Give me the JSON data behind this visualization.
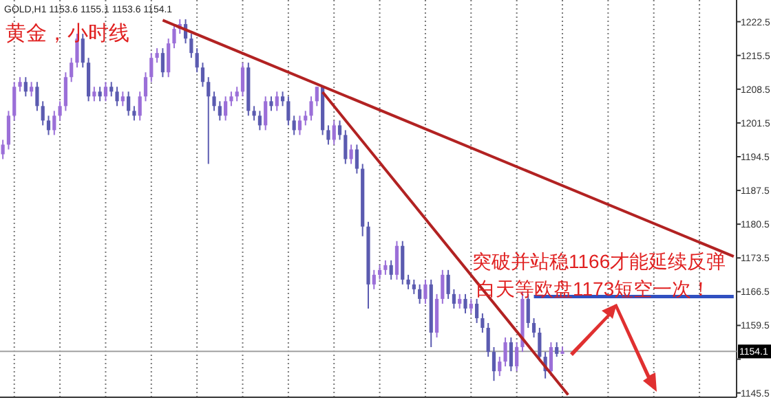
{
  "chart_data": {
    "type": "candlestick",
    "title": "黄金，小时线",
    "annotations": [
      "GOLD,H1  1153.6  1155.1  1153.6  1154.1",
      "突破并站稳1166才能延续反弹",
      "白天等欧盘1173短空一次！"
    ],
    "categories": [
      null,
      null,
      null,
      null,
      null,
      null,
      null,
      null,
      null,
      null,
      null,
      null,
      null,
      null,
      null,
      null,
      null,
      null,
      null,
      null,
      null,
      null,
      null,
      null,
      null,
      null,
      null,
      null,
      null,
      null,
      null,
      null,
      null,
      null,
      null,
      null,
      null,
      null,
      null,
      null,
      null,
      null,
      null,
      null,
      null,
      null,
      null,
      null,
      null,
      null,
      null,
      null,
      null,
      null,
      null,
      null,
      null,
      null,
      null,
      null,
      null,
      null,
      null,
      null,
      null,
      null,
      null,
      null,
      null,
      null,
      null,
      null,
      null,
      null,
      null,
      null,
      null,
      null,
      null,
      null,
      null,
      null,
      null,
      null,
      null,
      null,
      null,
      null,
      null,
      null,
      null,
      null,
      null,
      null,
      null,
      null,
      null,
      null,
      null,
      null,
      null,
      null,
      null,
      null,
      null,
      null,
      null,
      null,
      null,
      null,
      null,
      null,
      null,
      null,
      null,
      null,
      null,
      null,
      null,
      null,
      null,
      null,
      null,
      null,
      null,
      null,
      null,
      null,
      null
    ],
    "ylim": [
      1144.6,
      1227.0
    ],
    "yticks": [
      1145.5,
      {
        "value": 1152.5,
        "label": null
      },
      1159.5,
      1166.5,
      1173.5,
      1180.5,
      1187.5,
      1194.5,
      1201.5,
      1208.5,
      1215.5,
      1222.5
    ],
    "grid": "x",
    "tick_labels": "y",
    "ref_lines": [
      {
        "axis": "y",
        "value": 1154.1,
        "label": "1154.1",
        "color": "#a0a0a0"
      }
    ],
    "series": [
      {
        "colors": [
          "#9b6fd8",
          "#9b6fd8",
          "#9b6fd8",
          "#9b6fd8",
          "#5b5bb0",
          "#9b6fd8",
          "#5b5bb0",
          "#5b5bb0",
          "#5b5bb0",
          "#9b6fd8",
          "#9b6fd8",
          "#9b6fd8",
          "#9b6fd8",
          "#9b6fd8",
          "#5b5bb0",
          "#5b5bb0",
          "#9b6fd8",
          "#5b5bb0",
          "#9b6fd8",
          "#5b5bb0",
          "#5b5bb0",
          "#9b6fd8",
          "#5b5bb0",
          "#5b5bb0",
          "#9b6fd8",
          "#9b6fd8",
          "#9b6fd8",
          "#9b6fd8",
          "#5b5bb0",
          "#9b6fd8",
          "#9b6fd8",
          "#9b6fd8",
          "#5b5bb0",
          "#5b5bb0",
          "#5b5bb0",
          "#5b5bb0",
          "#5b5bb0",
          "#5b5bb0",
          "#5b5bb0",
          "#9b6fd8",
          "#9b6fd8",
          "#9b6fd8",
          "#9b6fd8",
          "#5b5bb0",
          "#5b5bb0",
          "#5b5bb0",
          "#9b6fd8",
          "#5b5bb0",
          "#9b6fd8",
          "#5b5bb0",
          "#5b5bb0",
          "#5b5bb0",
          "#9b6fd8",
          "#9b6fd8",
          "#9b6fd8",
          "#9b6fd8",
          "#5b5bb0",
          "#5b5bb0",
          "#9b6fd8",
          "#5b5bb0",
          "#5b5bb0",
          "#9b6fd8",
          "#5b5bb0",
          "#5b5bb0",
          "#5b5bb0",
          "#9b6fd8",
          "#9b6fd8",
          "#9b6fd8",
          "#5b5bb0",
          "#9b6fd8",
          "#5b5bb0",
          "#5b5bb0",
          "#5b5bb0",
          "#5b5bb0",
          "#9b6fd8",
          "#5b5bb0",
          "#9b6fd8",
          "#9b6fd8",
          "#5b5bb0",
          "#5b5bb0",
          "#9b6fd8",
          "#5b5bb0",
          "#9b6fd8",
          "#5b5bb0",
          "#5b5bb0",
          "#5b5bb0",
          "#5b5bb0",
          "#9b6fd8",
          "#9b6fd8",
          "#5b5bb0",
          "#9b6fd8",
          "#9b6fd8",
          "#5b5bb0",
          "#5b5bb0",
          "#5b5bb0",
          "#5b5bb0",
          "#9b6fd8",
          "#5b5bb0",
          "#9b6fd8",
          null,
          null,
          null,
          null,
          null,
          null,
          null,
          null,
          null,
          null,
          null,
          null,
          null,
          null,
          null,
          null,
          null,
          null,
          null,
          null,
          null,
          null,
          null,
          null,
          null,
          null,
          null,
          null,
          null,
          null
        ],
        "ohlc": [
          [
            1195,
            1198,
            1194,
            1197
          ],
          [
            1197,
            1204,
            1196,
            1203
          ],
          [
            1203,
            1210,
            1202,
            1209
          ],
          [
            1209,
            1211,
            1208,
            1210
          ],
          [
            1210,
            1211,
            1207,
            1208
          ],
          [
            1208,
            1210,
            1207,
            1209
          ],
          [
            1209,
            1210,
            1204,
            1205
          ],
          [
            1205,
            1206,
            1201,
            1202
          ],
          [
            1202,
            1203,
            1199,
            1200
          ],
          [
            1200,
            1204,
            1199,
            1203
          ],
          [
            1203,
            1206,
            1202,
            1205
          ],
          [
            1205,
            1212,
            1204,
            1211
          ],
          [
            1211,
            1215,
            1210,
            1214
          ],
          [
            1214,
            1220,
            1213,
            1219
          ],
          [
            1219,
            1220,
            1213,
            1214
          ],
          [
            1214,
            1215,
            1206,
            1207
          ],
          [
            1207,
            1209,
            1206,
            1208
          ],
          [
            1208,
            1209,
            1206,
            1207
          ],
          [
            1207,
            1210,
            1206,
            1209
          ],
          [
            1209,
            1210,
            1207,
            1208
          ],
          [
            1208,
            1209,
            1205,
            1206
          ],
          [
            1206,
            1208,
            1205,
            1207
          ],
          [
            1207,
            1208,
            1203,
            1204
          ],
          [
            1204,
            1205,
            1202,
            1203
          ],
          [
            1203,
            1208,
            1202,
            1207
          ],
          [
            1207,
            1212,
            1206,
            1211
          ],
          [
            1211,
            1216,
            1210,
            1215
          ],
          [
            1215,
            1217,
            1214,
            1216
          ],
          [
            1216,
            1217,
            1211,
            1212
          ],
          [
            1212,
            1219,
            1211,
            1218
          ],
          [
            1218,
            1222,
            1217,
            1221
          ],
          [
            1221,
            1223,
            1220,
            1222
          ],
          [
            1222,
            1223,
            1218,
            1219
          ],
          [
            1219,
            1220,
            1215,
            1216
          ],
          [
            1216,
            1217,
            1212,
            1213
          ],
          [
            1213,
            1214,
            1209,
            1210
          ],
          [
            1210,
            1211,
            1193,
            1207
          ],
          [
            1207,
            1208,
            1204,
            1205
          ],
          [
            1205,
            1206,
            1202,
            1203
          ],
          [
            1203,
            1207,
            1202,
            1206
          ],
          [
            1206,
            1208,
            1205,
            1207
          ],
          [
            1207,
            1209,
            1206,
            1208
          ],
          [
            1208,
            1214,
            1207,
            1213
          ],
          [
            1213,
            1214,
            1203,
            1204
          ],
          [
            1204,
            1205,
            1202,
            1203
          ],
          [
            1203,
            1204,
            1200,
            1201
          ],
          [
            1201,
            1207,
            1200,
            1206
          ],
          [
            1206,
            1207,
            1204,
            1205
          ],
          [
            1205,
            1208,
            1204,
            1207
          ],
          [
            1207,
            1208,
            1205,
            1206
          ],
          [
            1206,
            1207,
            1201,
            1202
          ],
          [
            1202,
            1203,
            1199,
            1200
          ],
          [
            1200,
            1203,
            1199,
            1202
          ],
          [
            1202,
            1204,
            1201,
            1203
          ],
          [
            1203,
            1207,
            1202,
            1206
          ],
          [
            1206,
            1209,
            1205,
            1209
          ],
          [
            1209,
            1209,
            1199,
            1200
          ],
          [
            1200,
            1201,
            1197,
            1198
          ],
          [
            1198,
            1202,
            1197,
            1201
          ],
          [
            1201,
            1202,
            1198,
            1199
          ],
          [
            1199,
            1200,
            1193,
            1194
          ],
          [
            1194,
            1197,
            1193,
            1196
          ],
          [
            1196,
            1197,
            1191,
            1192
          ],
          [
            1192,
            1193,
            1178,
            1180
          ],
          [
            1180,
            1181,
            1163,
            1168
          ],
          [
            1168,
            1171,
            1167,
            1170
          ],
          [
            1170,
            1172,
            1169,
            1171
          ],
          [
            1171,
            1173,
            1170,
            1172
          ],
          [
            1172,
            1173,
            1169,
            1170
          ],
          [
            1170,
            1177,
            1169,
            1176
          ],
          [
            1176,
            1177,
            1168,
            1169
          ],
          [
            1169,
            1170,
            1167,
            1168
          ],
          [
            1168,
            1169,
            1166,
            1167
          ],
          [
            1167,
            1168,
            1164,
            1165
          ],
          [
            1165,
            1169,
            1164,
            1168
          ],
          [
            1168,
            1169,
            1155,
            1158
          ],
          [
            1158,
            1166,
            1157,
            1165
          ],
          [
            1165,
            1171,
            1164,
            1170
          ],
          [
            1170,
            1171,
            1165,
            1166
          ],
          [
            1166,
            1167,
            1163,
            1164
          ],
          [
            1164,
            1166,
            1163,
            1165
          ],
          [
            1165,
            1166,
            1162,
            1163
          ],
          [
            1163,
            1165,
            1162,
            1164
          ],
          [
            1164,
            1165,
            1160,
            1161
          ],
          [
            1161,
            1162,
            1158,
            1159
          ],
          [
            1159,
            1160,
            1153,
            1154
          ],
          [
            1154,
            1155,
            1148,
            1150
          ],
          [
            1150,
            1153,
            1149,
            1152
          ],
          [
            1152,
            1157,
            1151,
            1156
          ],
          [
            1156,
            1157,
            1150,
            1151
          ],
          [
            1151,
            1156,
            1150,
            1155
          ],
          [
            1155,
            1166.5,
            1154,
            1165
          ],
          [
            1165,
            1166,
            1159,
            1160
          ],
          [
            1160,
            1161,
            1157,
            1158
          ],
          [
            1158,
            1159,
            1152,
            1153
          ],
          [
            1153,
            1154,
            1148.5,
            1150
          ],
          [
            1150,
            1156,
            1149,
            1155
          ],
          [
            1155,
            1156,
            1153,
            1153.6
          ],
          [
            1153.6,
            1155.1,
            1153.6,
            1154.1
          ],
          null,
          null,
          null,
          null,
          null,
          null,
          null,
          null,
          null,
          null,
          null,
          null,
          null,
          null,
          null,
          null,
          null,
          null,
          null,
          null,
          null,
          null,
          null,
          null,
          null,
          null,
          null,
          null,
          null,
          null
        ]
      },
      {
        "type": "line",
        "color": "#b22222",
        "values": [
          null,
          null,
          null,
          null,
          null,
          null,
          null,
          null,
          null,
          null,
          null,
          null,
          null,
          null,
          null,
          null,
          null,
          null,
          null,
          null,
          null,
          null,
          null,
          null,
          null,
          null,
          null,
          null,
          1222.8,
          null,
          null,
          null,
          null,
          null,
          null,
          null,
          null,
          null,
          null,
          null,
          null,
          null,
          null,
          null,
          null,
          null,
          null,
          null,
          null,
          null,
          null,
          null,
          null,
          null,
          null,
          null,
          null,
          null,
          null,
          null,
          null,
          null,
          null,
          null,
          null,
          null,
          null,
          null,
          null,
          null,
          null,
          null,
          null,
          null,
          null,
          null,
          null,
          null,
          null,
          null,
          null,
          null,
          null,
          null,
          null,
          null,
          null,
          null,
          null,
          null,
          null,
          null,
          null,
          null,
          null,
          null,
          null,
          null,
          null,
          null,
          null,
          null,
          null,
          null,
          null,
          null,
          null,
          null,
          null,
          null,
          null,
          null,
          null,
          null,
          null,
          null,
          null,
          null,
          null,
          null,
          null,
          null,
          null,
          null,
          null,
          null,
          null,
          null,
          1173.8
        ]
      },
      {
        "type": "line",
        "color": "#b22222",
        "values": [
          null,
          null,
          null,
          null,
          null,
          null,
          null,
          null,
          null,
          null,
          null,
          null,
          null,
          null,
          null,
          null,
          null,
          null,
          null,
          null,
          null,
          null,
          null,
          null,
          null,
          null,
          null,
          null,
          null,
          null,
          null,
          null,
          null,
          null,
          null,
          null,
          null,
          null,
          null,
          null,
          null,
          null,
          null,
          null,
          null,
          null,
          null,
          null,
          null,
          null,
          null,
          null,
          null,
          null,
          null,
          null,
          1207.9,
          null,
          null,
          null,
          null,
          null,
          null,
          null,
          null,
          null,
          null,
          null,
          null,
          null,
          null,
          null,
          null,
          null,
          null,
          null,
          null,
          null,
          null,
          null,
          null,
          null,
          null,
          null,
          null,
          null,
          null,
          null,
          null,
          null,
          null,
          null,
          null,
          null,
          null,
          null,
          null,
          null,
          null,
          1145.1,
          null,
          null,
          null,
          null,
          null,
          null,
          null,
          null,
          null,
          null,
          null,
          null,
          null,
          null,
          null,
          null,
          null,
          null,
          null,
          null,
          null,
          null,
          null,
          null,
          null,
          null,
          null,
          null,
          null
        ]
      },
      {
        "type": "line",
        "color": "#3050c0",
        "values": [
          null,
          null,
          null,
          null,
          null,
          null,
          null,
          null,
          null,
          null,
          null,
          null,
          null,
          null,
          null,
          null,
          null,
          null,
          null,
          null,
          null,
          null,
          null,
          null,
          null,
          null,
          null,
          null,
          null,
          null,
          null,
          null,
          null,
          null,
          null,
          null,
          null,
          null,
          null,
          null,
          null,
          null,
          null,
          null,
          null,
          null,
          null,
          null,
          null,
          null,
          null,
          null,
          null,
          null,
          null,
          null,
          null,
          null,
          null,
          null,
          null,
          null,
          null,
          null,
          null,
          null,
          null,
          null,
          null,
          null,
          null,
          null,
          null,
          null,
          null,
          null,
          null,
          null,
          null,
          null,
          null,
          null,
          null,
          null,
          null,
          null,
          null,
          null,
          null,
          null,
          null,
          null,
          null,
          1165.5,
          null,
          null,
          null,
          null,
          null,
          null,
          null,
          null,
          null,
          null,
          null,
          null,
          null,
          null,
          null,
          null,
          null,
          null,
          null,
          null,
          null,
          null,
          null,
          null,
          null,
          null,
          null,
          null,
          null,
          null,
          null,
          null,
          null,
          null,
          1165.5
        ]
      }
    ]
  }
}
